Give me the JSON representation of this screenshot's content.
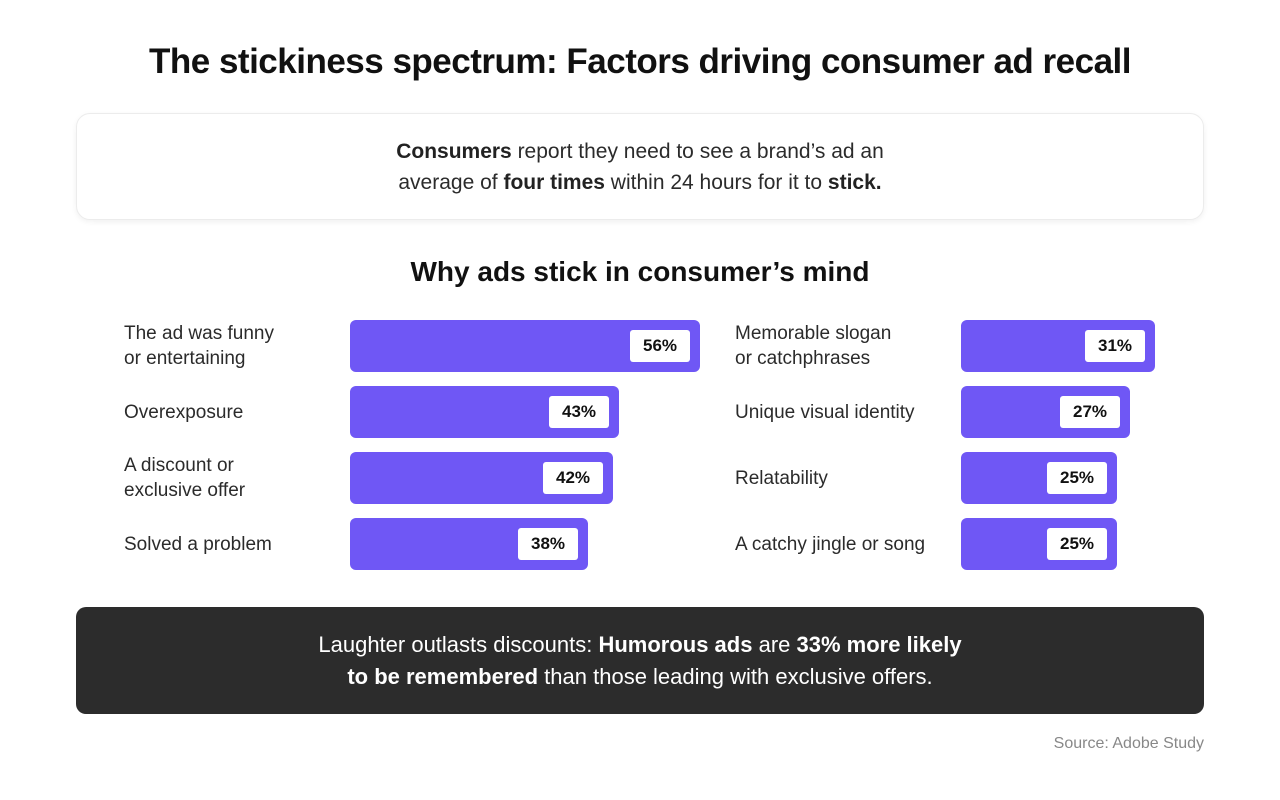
{
  "title": "The stickiness spectrum: Factors driving consumer ad recall",
  "callout": {
    "line1_bold": "Consumers",
    "line1_rest": " report they need to see a brand’s ad an",
    "line2_pre": "average of ",
    "line2_bold": "four times",
    "line2_mid": " within 24 hours for it to ",
    "line2_bold2": "stick."
  },
  "chart_data": {
    "type": "bar",
    "orientation": "horizontal",
    "title": "Why ads stick in consumer’s mind",
    "unit": "%",
    "xlim": [
      0,
      56
    ],
    "bar_color": "#6f57f5",
    "columns": [
      {
        "categories": [
          "The ad was funny or entertaining",
          "Overexposure",
          "A discount or exclusive offer",
          "Solved a problem"
        ],
        "label_lines": [
          [
            "The ad was funny",
            "or entertaining"
          ],
          [
            "Overexposure"
          ],
          [
            "A discount or",
            "exclusive offer"
          ],
          [
            "Solved a problem"
          ]
        ],
        "values": [
          56,
          43,
          42,
          38
        ],
        "value_labels": [
          "56%",
          "43%",
          "42%",
          "38%"
        ]
      },
      {
        "categories": [
          "Memorable slogan or catchphrases",
          "Unique visual identity",
          "Relatability",
          "A catchy jingle or song"
        ],
        "label_lines": [
          [
            "Memorable slogan",
            "or catchphrases"
          ],
          [
            "Unique visual identity"
          ],
          [
            "Relatability"
          ],
          [
            "A catchy jingle or song"
          ]
        ],
        "values": [
          31,
          27,
          25,
          25
        ],
        "value_labels": [
          "31%",
          "27%",
          "25%",
          "25%"
        ]
      }
    ]
  },
  "banner": {
    "line1_pre": "Laughter outlasts discounts: ",
    "line1_bold": "Humorous ads",
    "line1_mid": " are ",
    "line1_bold2": "33% more likely",
    "line2_bold": "to be remembered",
    "line2_rest": " than those leading with exclusive offers."
  },
  "source": "Source: Adobe Study"
}
